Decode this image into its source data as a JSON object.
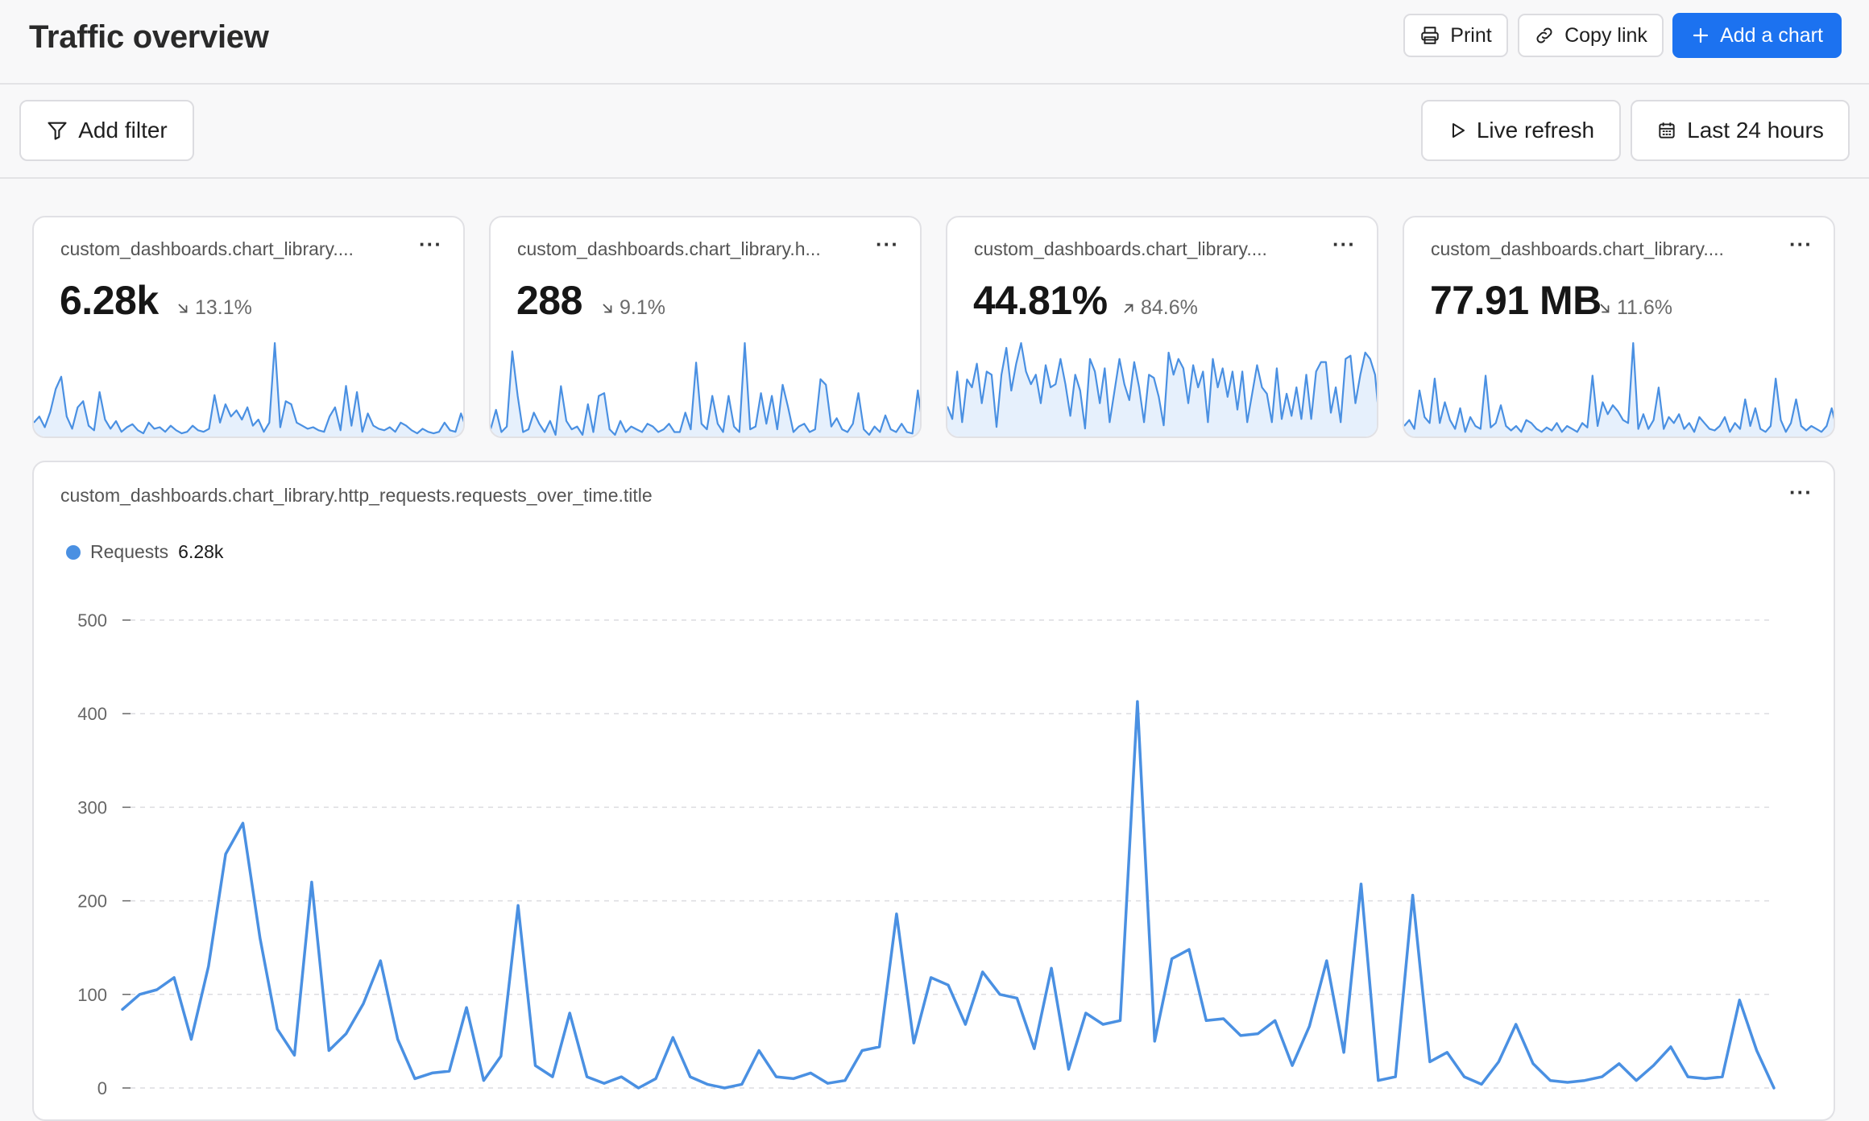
{
  "header": {
    "title": "Traffic overview",
    "print_label": "Print",
    "copy_link_label": "Copy link",
    "add_chart_label": "Add a chart"
  },
  "filters": {
    "add_filter_label": "Add filter",
    "live_refresh_label": "Live refresh",
    "time_range_label": "Last 24 hours"
  },
  "kpis": [
    {
      "title": "custom_dashboards.chart_library....",
      "value": "6.28k",
      "delta": "13.1%",
      "trend": "down",
      "spark": [
        8,
        12,
        5,
        15,
        30,
        38,
        12,
        4,
        18,
        22,
        6,
        3,
        28,
        10,
        4,
        9,
        2,
        5,
        7,
        3,
        1,
        8,
        4,
        5,
        2,
        6,
        3,
        1,
        2,
        6,
        3,
        2,
        4,
        26,
        8,
        20,
        12,
        16,
        10,
        18,
        6,
        10,
        2,
        8,
        60,
        5,
        22,
        20,
        8,
        6,
        4,
        5,
        3,
        2,
        12,
        18,
        3,
        32,
        6,
        28,
        2,
        14,
        6,
        4,
        3,
        5,
        2,
        8,
        6,
        3,
        1,
        4,
        2,
        1,
        2,
        8,
        3,
        2,
        14,
        4
      ]
    },
    {
      "title": "custom_dashboards.chart_library.h...",
      "value": "288",
      "delta": "9.1%",
      "trend": "down",
      "spark": [
        4,
        18,
        2,
        6,
        60,
        28,
        2,
        4,
        16,
        8,
        2,
        10,
        0,
        35,
        10,
        4,
        6,
        0,
        22,
        2,
        28,
        30,
        4,
        0,
        10,
        2,
        6,
        4,
        2,
        8,
        6,
        2,
        4,
        8,
        2,
        2,
        16,
        4,
        52,
        8,
        4,
        28,
        8,
        2,
        28,
        6,
        2,
        66,
        4,
        6,
        30,
        8,
        28,
        4,
        36,
        20,
        2,
        6,
        8,
        2,
        4,
        40,
        36,
        6,
        12,
        4,
        2,
        8,
        30,
        4,
        0,
        6,
        2,
        14,
        4,
        2,
        8,
        2,
        1,
        32,
        4
      ]
    },
    {
      "title": "custom_dashboards.chart_library....",
      "value": "44.81%",
      "delta": "84.6%",
      "trend": "up",
      "spark": [
        18,
        10,
        40,
        8,
        35,
        30,
        45,
        20,
        40,
        38,
        5,
        38,
        55,
        28,
        45,
        58,
        40,
        32,
        38,
        20,
        44,
        30,
        32,
        48,
        32,
        12,
        38,
        28,
        4,
        48,
        40,
        20,
        42,
        8,
        28,
        48,
        32,
        22,
        46,
        30,
        8,
        38,
        36,
        24,
        6,
        52,
        38,
        48,
        42,
        20,
        44,
        30,
        40,
        8,
        48,
        30,
        42,
        24,
        40,
        16,
        40,
        8,
        26,
        44,
        30,
        26,
        8,
        42,
        10,
        26,
        12,
        30,
        10,
        38,
        10,
        40,
        46,
        46,
        14,
        30,
        8,
        48,
        50,
        20,
        38,
        52,
        48,
        38,
        4
      ]
    },
    {
      "title": "custom_dashboards.chart_library....",
      "value": "77.91 MB",
      "delta": "11.6%",
      "trend": "down",
      "spark": [
        6,
        10,
        4,
        30,
        12,
        8,
        38,
        8,
        22,
        10,
        4,
        18,
        2,
        12,
        6,
        4,
        40,
        5,
        8,
        20,
        6,
        3,
        6,
        2,
        10,
        8,
        4,
        2,
        5,
        3,
        8,
        2,
        6,
        4,
        2,
        8,
        5,
        40,
        6,
        22,
        14,
        20,
        16,
        10,
        8,
        62,
        4,
        14,
        4,
        10,
        32,
        4,
        12,
        8,
        14,
        4,
        8,
        2,
        12,
        8,
        4,
        3,
        6,
        12,
        2,
        8,
        4,
        24,
        6,
        18,
        4,
        2,
        6,
        38,
        10,
        2,
        8,
        24,
        6,
        3,
        6,
        4,
        2,
        6,
        18,
        4
      ]
    }
  ],
  "main_chart": {
    "title": "custom_dashboards.chart_library.http_requests.requests_over_time.title",
    "legend_name": "Requests",
    "legend_value": "6.28k",
    "color": "#4a90e2"
  },
  "chart_data": {
    "type": "line",
    "title": "custom_dashboards.chart_library.http_requests.requests_over_time.title",
    "xlabel": "",
    "ylabel": "",
    "ylim": [
      0,
      500
    ],
    "yticks": [
      0,
      100,
      200,
      300,
      400,
      500
    ],
    "grid": true,
    "legend": "top-left",
    "series": [
      {
        "name": "Requests",
        "values": [
          84,
          100,
          105,
          118,
          52,
          130,
          250,
          283,
          160,
          63,
          35,
          220,
          40,
          58,
          90,
          136,
          52,
          10,
          16,
          18,
          86,
          8,
          34,
          195,
          24,
          12,
          80,
          12,
          5,
          12,
          0,
          10,
          54,
          12,
          4,
          0,
          4,
          40,
          12,
          10,
          16,
          5,
          8,
          40,
          44,
          186,
          48,
          118,
          110,
          68,
          124,
          100,
          96,
          42,
          128,
          20,
          80,
          68,
          72,
          413,
          50,
          138,
          148,
          72,
          74,
          56,
          58,
          72,
          24,
          66,
          136,
          38,
          218,
          8,
          12,
          206,
          28,
          38,
          12,
          4,
          28,
          68,
          26,
          8,
          6,
          8,
          12,
          26,
          8,
          24,
          44,
          12,
          10,
          12,
          94,
          40,
          0
        ]
      }
    ]
  }
}
